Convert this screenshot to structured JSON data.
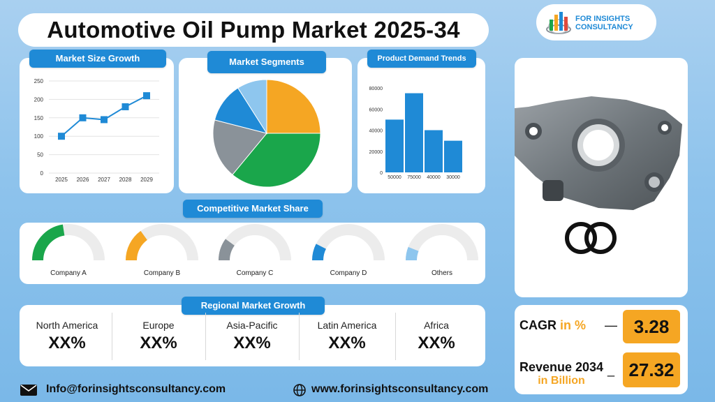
{
  "title": "Automotive Oil Pump Market 2025-34",
  "logo": {
    "line1": "FOR INSIGHTS",
    "line2": "CONSULTANCY",
    "icon": "bar-chart-globe-logo"
  },
  "sections": {
    "size_growth": "Market Size Growth",
    "segments": "Market Segments",
    "demand": "Product Demand Trends",
    "competitive": "Competitive Market Share",
    "regional": "Regional Market Growth"
  },
  "chart_data": [
    {
      "type": "line",
      "title": "Market Size Growth",
      "x": [
        "2025",
        "2026",
        "2027",
        "2028",
        "2029"
      ],
      "series": [
        {
          "values": [
            100,
            150,
            145,
            180,
            210
          ]
        }
      ],
      "yticks": [
        "0",
        "50",
        "100",
        "150",
        "200",
        "250"
      ],
      "ylim": [
        0,
        250
      ],
      "grid": true,
      "color": "#1f8ad6"
    },
    {
      "type": "pie",
      "title": "Market Segments",
      "slices": [
        {
          "value": 25,
          "color": "#f5a623"
        },
        {
          "value": 36,
          "color": "#1aa64b"
        },
        {
          "value": 18,
          "color": "#8a9299"
        },
        {
          "value": 12,
          "color": "#1f8ad6"
        },
        {
          "value": 9,
          "color": "#8ec6ee"
        }
      ]
    },
    {
      "type": "bar",
      "title": "Product Demand Trends",
      "categories": [
        "50000",
        "75000",
        "40000",
        "30000"
      ],
      "values": [
        50000,
        75000,
        40000,
        30000
      ],
      "yticks": [
        "0",
        "20000",
        "40000",
        "60000",
        "80000"
      ],
      "ylim": [
        0,
        80000
      ],
      "color": "#1f8ad6"
    },
    {
      "type": "gauge",
      "title": "Competitive Market Share",
      "items": [
        {
          "label": "Company A",
          "value": 0.45,
          "color": "#1aa64b"
        },
        {
          "label": "Company B",
          "value": 0.3,
          "color": "#f5a623"
        },
        {
          "label": "Company C",
          "value": 0.2,
          "color": "#8a9299"
        },
        {
          "label": "Company D",
          "value": 0.15,
          "color": "#1f8ad6"
        },
        {
          "label": "Others",
          "value": 0.12,
          "color": "#8ec6ee"
        }
      ]
    }
  ],
  "regions": [
    {
      "name": "North America",
      "value": "XX%"
    },
    {
      "name": "Europe",
      "value": "XX%"
    },
    {
      "name": "Asia-Pacific",
      "value": "XX%"
    },
    {
      "name": "Latin America",
      "value": "XX%"
    },
    {
      "name": "Africa",
      "value": "XX%"
    }
  ],
  "metrics": {
    "cagr_label": "CAGR",
    "cagr_unit": "in %",
    "cagr_dash": "—",
    "cagr_value": "3.28",
    "revenue_label": "Revenue 2034",
    "revenue_unit": "in Billion",
    "revenue_dash": "_",
    "revenue_value": "27.32"
  },
  "product_image": "oil-pump-with-o-rings",
  "footer": {
    "email": "Info@forinsightsconsultancy.com",
    "website": "www.forinsightsconsultancy.com",
    "email_icon": "envelope-icon",
    "web_icon": "globe-icon"
  },
  "colors": {
    "accent": "#1f8ad6",
    "orange": "#f5a623",
    "green": "#1aa64b"
  }
}
